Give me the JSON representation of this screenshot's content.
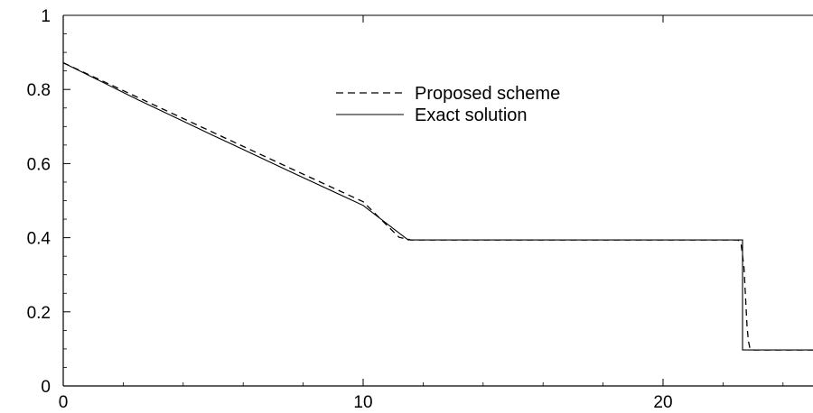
{
  "chart_data": {
    "type": "line",
    "title": "",
    "xlabel": "",
    "ylabel": "",
    "xlim": [
      0,
      25
    ],
    "ylim": [
      0,
      1
    ],
    "x_ticks": [
      "0",
      "10",
      "20"
    ],
    "x_tick_values": [
      0,
      10,
      20
    ],
    "y_ticks": [
      "0",
      "0.2",
      "0.4",
      "0.6",
      "0.8",
      "1"
    ],
    "y_tick_values": [
      0,
      0.2,
      0.4,
      0.6,
      0.8,
      1
    ],
    "grid": false,
    "legend_position": "top-center",
    "series": [
      {
        "name": "Proposed scheme",
        "style": "dashed",
        "color": "#000000",
        "x": [
          0,
          2.5,
          5,
          7.5,
          10,
          11.2,
          11.6,
          15,
          20,
          22.5,
          22.6,
          22.7,
          22.75,
          22.8,
          22.85,
          22.9,
          23.0,
          25
        ],
        "y": [
          0.872,
          0.778,
          0.684,
          0.59,
          0.497,
          0.401,
          0.394,
          0.394,
          0.394,
          0.394,
          0.385,
          0.32,
          0.24,
          0.16,
          0.12,
          0.1,
          0.097,
          0.097
        ]
      },
      {
        "name": "Exact solution",
        "style": "solid",
        "color": "#000000",
        "x": [
          0,
          2.5,
          5,
          7.5,
          10,
          11.5,
          15,
          20,
          22.65,
          22.65,
          25
        ],
        "y": [
          0.872,
          0.772,
          0.676,
          0.581,
          0.487,
          0.394,
          0.394,
          0.394,
          0.394,
          0.097,
          0.097
        ]
      }
    ]
  }
}
